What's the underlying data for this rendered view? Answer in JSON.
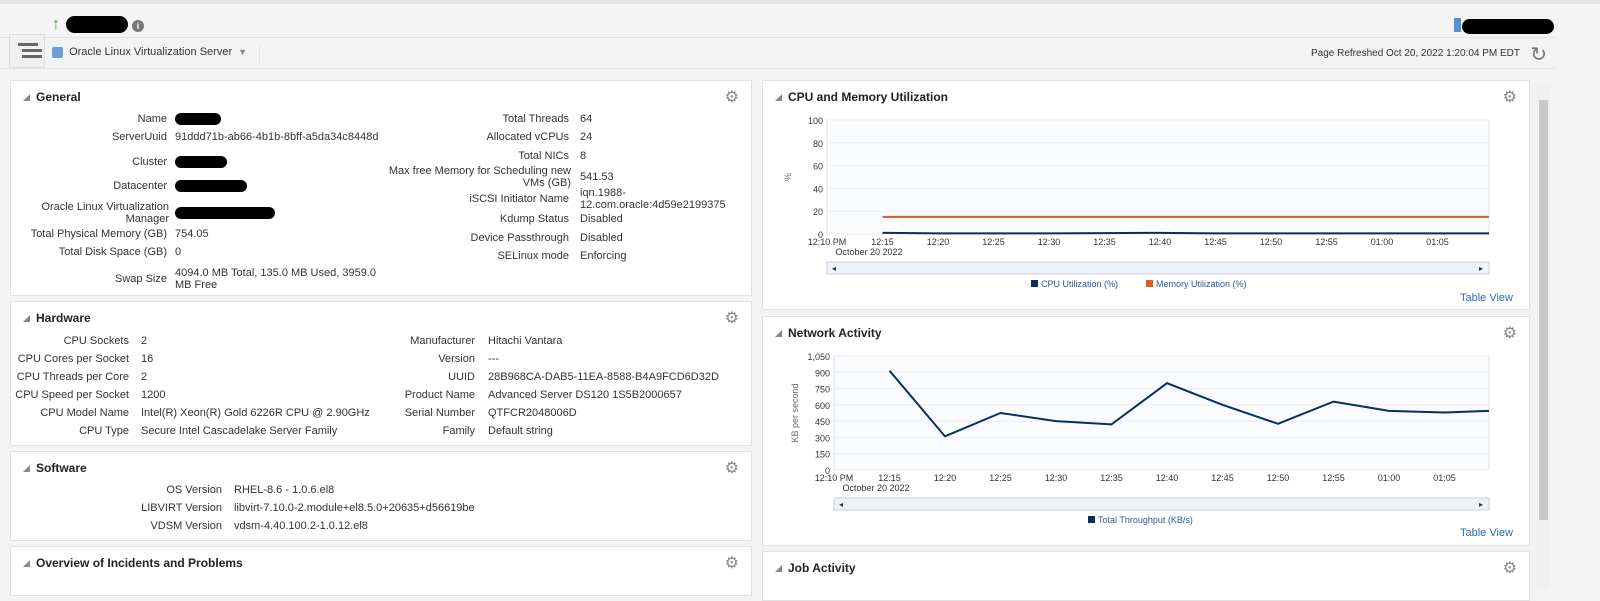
{
  "header": {
    "target_type": "Oracle Linux Virtualization Server",
    "refreshed": "Page Refreshed Oct 20, 2022 1:20:04 PM EDT"
  },
  "general": {
    "title": "General",
    "left": [
      {
        "label": "Name",
        "value": ""
      },
      {
        "label": "ServerUuid",
        "value": "91ddd71b-ab66-4b1b-8bff-a5da34c8448d"
      },
      {
        "label": "Cluster",
        "value": ""
      },
      {
        "label": "Datacenter",
        "value": ""
      },
      {
        "label": "Oracle Linux Virtualization Manager",
        "value": ""
      },
      {
        "label": "Total Physical Memory (GB)",
        "value": "754.05"
      },
      {
        "label": "Total Disk Space (GB)",
        "value": "0"
      },
      {
        "label": "Swap Size",
        "value": "4094.0 MB Total, 135.0 MB Used, 3959.0 MB Free"
      }
    ],
    "right": [
      {
        "label": "Total Threads",
        "value": "64"
      },
      {
        "label": "Allocated vCPUs",
        "value": "24"
      },
      {
        "label": "Total NICs",
        "value": "8"
      },
      {
        "label": "Max free Memory for Scheduling new VMs (GB)",
        "value": "541.53"
      },
      {
        "label": "iSCSI Initiator Name",
        "value": "iqn.1988-12.com.oracle:4d59e2199375"
      },
      {
        "label": "Kdump Status",
        "value": "Disabled"
      },
      {
        "label": "Device Passthrough",
        "value": "Disabled"
      },
      {
        "label": "SELinux mode",
        "value": "Enforcing"
      }
    ]
  },
  "hardware": {
    "title": "Hardware",
    "left": [
      {
        "label": "CPU Sockets",
        "value": "2"
      },
      {
        "label": "CPU Cores per Socket",
        "value": "16"
      },
      {
        "label": "CPU Threads per Core",
        "value": "2"
      },
      {
        "label": "CPU Speed per Socket",
        "value": "1200"
      },
      {
        "label": "CPU Model Name",
        "value": "Intel(R) Xeon(R) Gold 6226R CPU @ 2.90GHz"
      },
      {
        "label": "CPU Type",
        "value": "Secure Intel Cascadelake Server Family"
      }
    ],
    "right": [
      {
        "label": "Manufacturer",
        "value": "Hitachi Vantara"
      },
      {
        "label": "Version",
        "value": "---"
      },
      {
        "label": "UUID",
        "value": "28B968CA-DAB5-11EA-8588-B4A9FCD6D32D"
      },
      {
        "label": "Product Name",
        "value": "Advanced Server DS120 1S5B2000657"
      },
      {
        "label": "Serial Number",
        "value": "QTFCR2048006D"
      },
      {
        "label": "Family",
        "value": "Default string"
      }
    ]
  },
  "software": {
    "title": "Software",
    "rows": [
      {
        "label": "OS Version",
        "value": "RHEL-8.6 - 1.0.6.el8"
      },
      {
        "label": "LIBVIRT Version",
        "value": "libvirt-7.10.0-2.module+el8.5.0+20635+d56619be"
      },
      {
        "label": "VDSM Version",
        "value": "vdsm-4.40.100.2-1.0.12.el8"
      }
    ]
  },
  "incidents": {
    "title": "Overview of Incidents and Problems"
  },
  "jobs": {
    "title": "Job Activity"
  },
  "table_view": "Table View",
  "chart_data": [
    {
      "type": "line",
      "title": "CPU and Memory Utilization",
      "ylabel": "%",
      "ylim": [
        0,
        100
      ],
      "yticks": [
        "100",
        "80",
        "60",
        "40",
        "20",
        "0"
      ],
      "xticks": [
        "12:10 PM",
        "12:15",
        "12:20",
        "12:25",
        "12:30",
        "12:35",
        "12:40",
        "12:45",
        "12:50",
        "12:55",
        "01:00",
        "01:05"
      ],
      "xsub": "October 20 2022",
      "x": [
        "12:15",
        "12:20",
        "12:25",
        "12:30",
        "12:35",
        "12:40",
        "12:45",
        "12:50",
        "12:55",
        "01:00",
        "01:05",
        "01:10"
      ],
      "series": [
        {
          "name": "CPU Utilization (%)",
          "color": "#0b2d5e",
          "values": [
            1,
            0.5,
            0.5,
            0.5,
            0.8,
            1,
            0.5,
            0.5,
            0.5,
            0.5,
            0.5,
            0.5
          ]
        },
        {
          "name": "Memory Utilization (%)",
          "color": "#d0612b",
          "values": [
            15,
            15,
            15,
            15,
            15,
            15,
            15,
            15,
            15,
            15,
            15,
            15
          ]
        }
      ]
    },
    {
      "type": "line",
      "title": "Network Activity",
      "ylabel": "KB per second",
      "ylim": [
        0,
        1050
      ],
      "yticks": [
        "1,050",
        "900",
        "750",
        "600",
        "450",
        "300",
        "150",
        "0"
      ],
      "xticks": [
        "12:10 PM",
        "12:15",
        "12:20",
        "12:25",
        "12:30",
        "12:35",
        "12:40",
        "12:45",
        "12:50",
        "12:55",
        "01:00",
        "01:05"
      ],
      "xsub": "October 20 2022",
      "x": [
        "12:15",
        "12:20",
        "12:25",
        "12:30",
        "12:35",
        "12:40",
        "12:45",
        "12:50",
        "12:55",
        "01:00",
        "01:05",
        "01:10"
      ],
      "series": [
        {
          "name": "Total Throughput (KB/s)",
          "color": "#0b2d5e",
          "values": [
            915,
            310,
            525,
            450,
            420,
            800,
            600,
            425,
            630,
            545,
            530,
            545
          ]
        }
      ]
    }
  ]
}
